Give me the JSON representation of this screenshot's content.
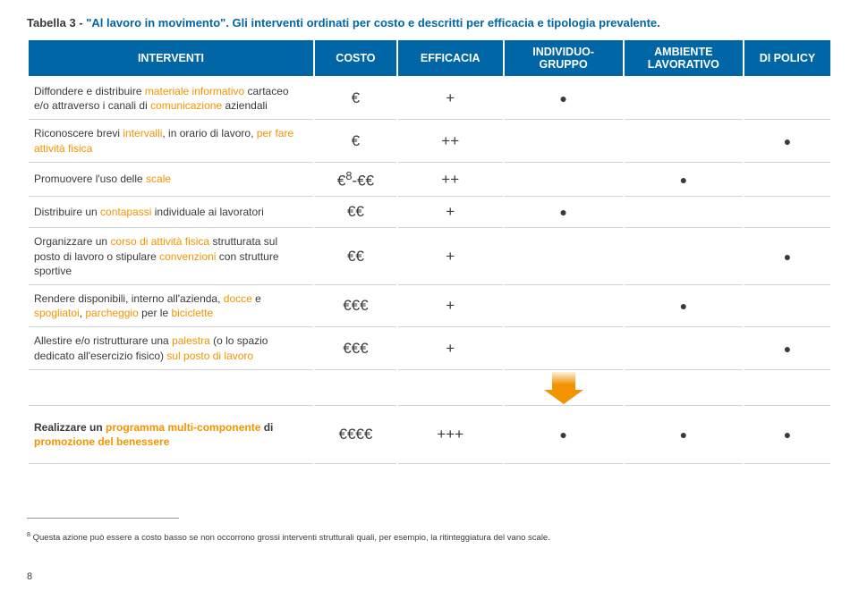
{
  "caption": {
    "prefix": "Tabella 3 - ",
    "quoted": "\"Al lavoro in movimento\"",
    "rest": ". Gli interventi ordinati per costo e descritti per efficacia e tipologia prevalente."
  },
  "headers": {
    "interventi": "INTERVENTI",
    "costo": "COSTO",
    "efficacia": "EFFICACIA",
    "indiv": "INDIVIDUO-\nGRUPPO",
    "ambiente": "AMBIENTE LAVORATIVO",
    "policy": "DI POLICY"
  },
  "rows": [
    {
      "html": "Diffondere e distribuire <span class='hi'>materiale informativo</span> cartaceo e/o attraverso i canali di <span class='hi'>comunicazione</span> aziendali",
      "costo": "€",
      "eff": "+",
      "ind": "●",
      "amb": "",
      "pol": ""
    },
    {
      "html": "Riconoscere brevi <span class='hi'>intervalli</span>, in orario di lavoro, <span class='hi'>per fare attività fisica</span>",
      "costo": "€",
      "eff": "++",
      "ind": "",
      "amb": "",
      "pol": "●"
    },
    {
      "html": "Promuovere l'uso delle <span class='hi'>scale</span>",
      "costo_html": "€<sup>8</sup>-€€",
      "eff": "++",
      "ind": "",
      "amb": "●",
      "pol": ""
    },
    {
      "html": "Distribuire un <span class='hi'>contapassi</span> individuale ai lavoratori",
      "costo": "€€",
      "eff": "+",
      "ind": "●",
      "amb": "",
      "pol": ""
    },
    {
      "html": "Organizzare un <span class='hi'>corso di attività fisica</span> strutturata sul posto di lavoro o stipulare <span class='hi'>convenzioni</span> con strutture sportive",
      "costo": "€€",
      "eff": "+",
      "ind": "",
      "amb": "",
      "pol": "●"
    },
    {
      "html": "Rendere disponibili, interno all'azienda, <span class='hi'>docce</span> e <span class='hi'>spogliatoi</span>, <span class='hi'>parcheggio</span> per le <span class='hi'>biciclette</span>",
      "costo": "€€€",
      "eff": "+",
      "ind": "",
      "amb": "●",
      "pol": ""
    },
    {
      "html": "Allestire e/o ristrutturare una <span class='hi'>palestra</span> (o lo spazio dedicato all'esercizio fisico) <span class='hi'>sul posto di lavoro</span>",
      "costo": "€€€",
      "eff": "+",
      "ind": "",
      "amb": "",
      "pol": "●"
    }
  ],
  "result": {
    "html": "<b>Realizzare un <span class='hi'>programma multi-componente</span> di <span class='hi'>promozione del benessere</span></b>",
    "costo": "€€€€",
    "eff": "+++",
    "ind": "●",
    "amb": "●",
    "pol": "●"
  },
  "footnote": {
    "marker": "8",
    "text": " Questa azione può essere a costo basso se non occorrono grossi interventi strutturali quali, per esempio, la ritinteggiatura del vano scale."
  },
  "pagenum": "8"
}
